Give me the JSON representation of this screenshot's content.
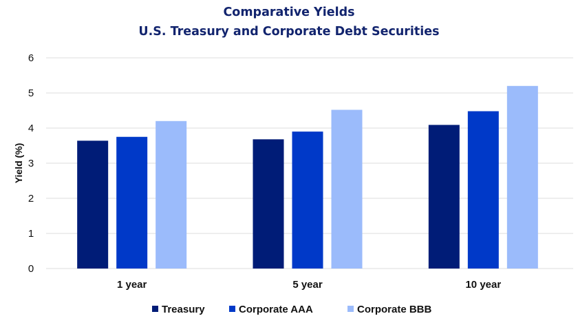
{
  "chart_data": {
    "type": "bar",
    "title": "Comparative Yields",
    "subtitle": "U.S. Treasury and Corporate Debt Securities",
    "xlabel": "",
    "ylabel": "Yield (%)",
    "ylim": [
      0,
      6
    ],
    "yticks": [
      "0",
      "1",
      "2",
      "3",
      "4",
      "5",
      "6"
    ],
    "grid": true,
    "legend_position": "bottom",
    "categories": [
      "1 year",
      "5 year",
      "10 year"
    ],
    "series": [
      {
        "name": "Treasury",
        "color": "#001c77",
        "values": [
          3.64,
          3.68,
          4.09
        ]
      },
      {
        "name": "Corporate AAA",
        "color": "#0039c8",
        "values": [
          3.75,
          3.9,
          4.48
        ]
      },
      {
        "name": "Corporate BBB",
        "color": "#9bbbfb",
        "values": [
          4.2,
          4.52,
          5.2
        ]
      }
    ]
  }
}
